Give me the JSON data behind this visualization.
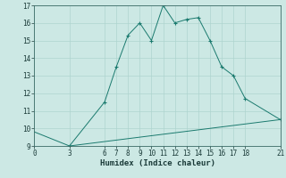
{
  "line1_x": [
    3,
    6,
    7,
    8,
    9,
    10,
    11,
    12,
    13,
    14,
    15,
    16,
    17,
    18,
    21
  ],
  "line1_y": [
    9.0,
    11.5,
    13.5,
    15.3,
    16.0,
    15.0,
    17.0,
    16.0,
    16.2,
    16.3,
    15.0,
    13.5,
    13.0,
    11.7,
    10.5
  ],
  "line2_x": [
    0,
    3,
    21
  ],
  "line2_y": [
    9.8,
    9.0,
    10.5
  ],
  "color": "#1a7a6e",
  "bg_color": "#cce8e4",
  "grid_color": "#aed4cf",
  "xlabel": "Humidex (Indice chaleur)",
  "xlim": [
    0,
    21
  ],
  "ylim": [
    9,
    17
  ],
  "xticks": [
    0,
    3,
    6,
    7,
    8,
    9,
    10,
    11,
    12,
    13,
    14,
    15,
    16,
    17,
    18,
    21
  ],
  "yticks": [
    9,
    10,
    11,
    12,
    13,
    14,
    15,
    16,
    17
  ],
  "marker": "+"
}
